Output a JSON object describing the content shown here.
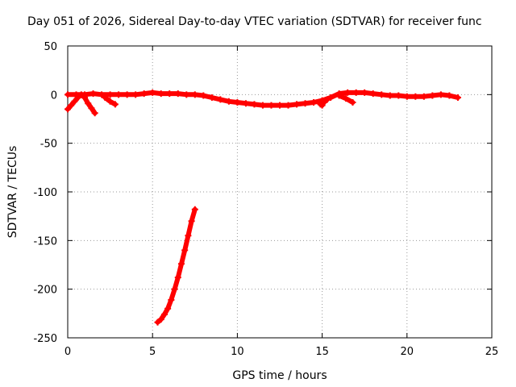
{
  "chart_data": {
    "type": "scatter",
    "title": "Day 051 of 2026, Sidereal Day-to-day VTEC variation (SDTVAR) for receiver func",
    "xlabel": "GPS time / hours",
    "ylabel": "SDTVAR / TECUs",
    "xlim": [
      0,
      25
    ],
    "ylim": [
      -250,
      50
    ],
    "x_ticks": [
      0,
      5,
      10,
      15,
      20,
      25
    ],
    "y_ticks": [
      -250,
      -200,
      -150,
      -100,
      -50,
      0,
      50
    ],
    "grid": true,
    "marker": "plus",
    "color": "#ff0000",
    "series": [
      {
        "name": "main-trace",
        "x": [
          0.0,
          0.5,
          1.0,
          1.5,
          2.0,
          2.5,
          3.0,
          3.5,
          4.0,
          4.5,
          5.0,
          5.5,
          6.0,
          6.5,
          7.0,
          7.5,
          8.0,
          8.5,
          9.0,
          9.5,
          10.0,
          10.5,
          11.0,
          11.5,
          12.0,
          12.5,
          13.0,
          13.5,
          14.0,
          14.5,
          15.0,
          15.5,
          16.0,
          16.5,
          17.0,
          17.5,
          18.0,
          18.5,
          19.0,
          19.5,
          20.0,
          20.5,
          21.0,
          21.5,
          22.0,
          22.5,
          23.0
        ],
        "y": [
          0,
          0,
          0,
          1,
          0,
          0,
          0,
          0,
          0,
          1,
          2,
          1,
          1,
          1,
          0,
          0,
          -1,
          -3,
          -5,
          -7,
          -8,
          -9,
          -10,
          -11,
          -11,
          -11,
          -11,
          -10,
          -9,
          -8,
          -6,
          -3,
          1,
          2,
          2,
          2,
          1,
          0,
          -1,
          -1,
          -2,
          -2,
          -2,
          -1,
          0,
          -1,
          -3
        ]
      },
      {
        "name": "negative-excursion",
        "x": [
          5.3,
          5.5,
          5.7,
          5.9,
          6.1,
          6.3,
          6.5,
          6.7,
          6.9,
          7.1,
          7.3,
          7.5
        ],
        "y": [
          -234,
          -231,
          -226,
          -220,
          -211,
          -200,
          -188,
          -174,
          -160,
          -145,
          -130,
          -118
        ]
      },
      {
        "name": "early-spikes",
        "x": [
          0.0,
          0.2,
          0.4,
          0.6,
          0.8,
          1.0,
          1.2,
          1.4,
          1.6
        ],
        "y": [
          -15,
          -11,
          -7,
          -3,
          0,
          -3,
          -9,
          -14,
          -19
        ]
      },
      {
        "name": "spike-2h",
        "x": [
          2.2,
          2.5,
          2.8
        ],
        "y": [
          -3,
          -7,
          -10
        ]
      },
      {
        "name": "spike-15h",
        "x": [
          14.9,
          15.0,
          15.1,
          15.3
        ],
        "y": [
          -10,
          -11,
          -8,
          -5
        ]
      },
      {
        "name": "spike-16h",
        "x": [
          16.0,
          16.4,
          16.8
        ],
        "y": [
          -1,
          -4,
          -8
        ]
      }
    ]
  }
}
